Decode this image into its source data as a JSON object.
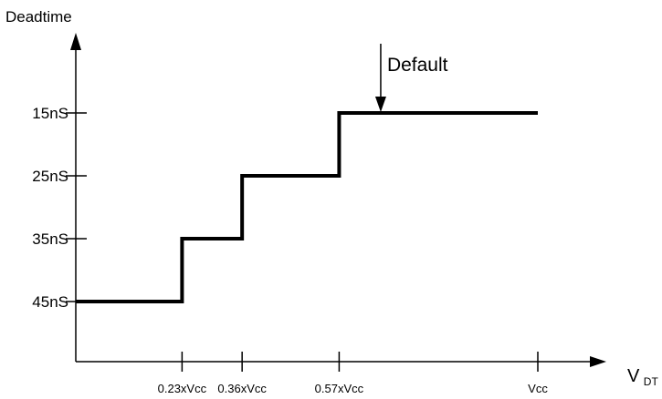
{
  "chart_data": {
    "type": "line",
    "ylabel": "Deadtime",
    "xlabel": {
      "main": "V",
      "sub": "DT"
    },
    "y_ticks": [
      "15nS",
      "25nS",
      "35nS",
      "45nS"
    ],
    "x_ticks": [
      "0.23xVcc",
      "0.36xVcc",
      "0.57xVcc",
      "Vcc"
    ],
    "x_tick_values": [
      0.23,
      0.36,
      0.57,
      1.0
    ],
    "series": [
      {
        "steps": [
          {
            "x_from": 0.0,
            "x_to": 0.23,
            "y": "45nS"
          },
          {
            "x_from": 0.23,
            "x_to": 0.36,
            "y": "35nS"
          },
          {
            "x_from": 0.36,
            "x_to": 0.57,
            "y": "25nS"
          },
          {
            "x_from": 0.57,
            "x_to": 1.0,
            "y": "15nS"
          }
        ]
      }
    ],
    "annotation": {
      "text": "Default",
      "arrow_x": 0.66,
      "arrow_y": "15nS"
    },
    "grid": false,
    "line_color": "#000000"
  }
}
